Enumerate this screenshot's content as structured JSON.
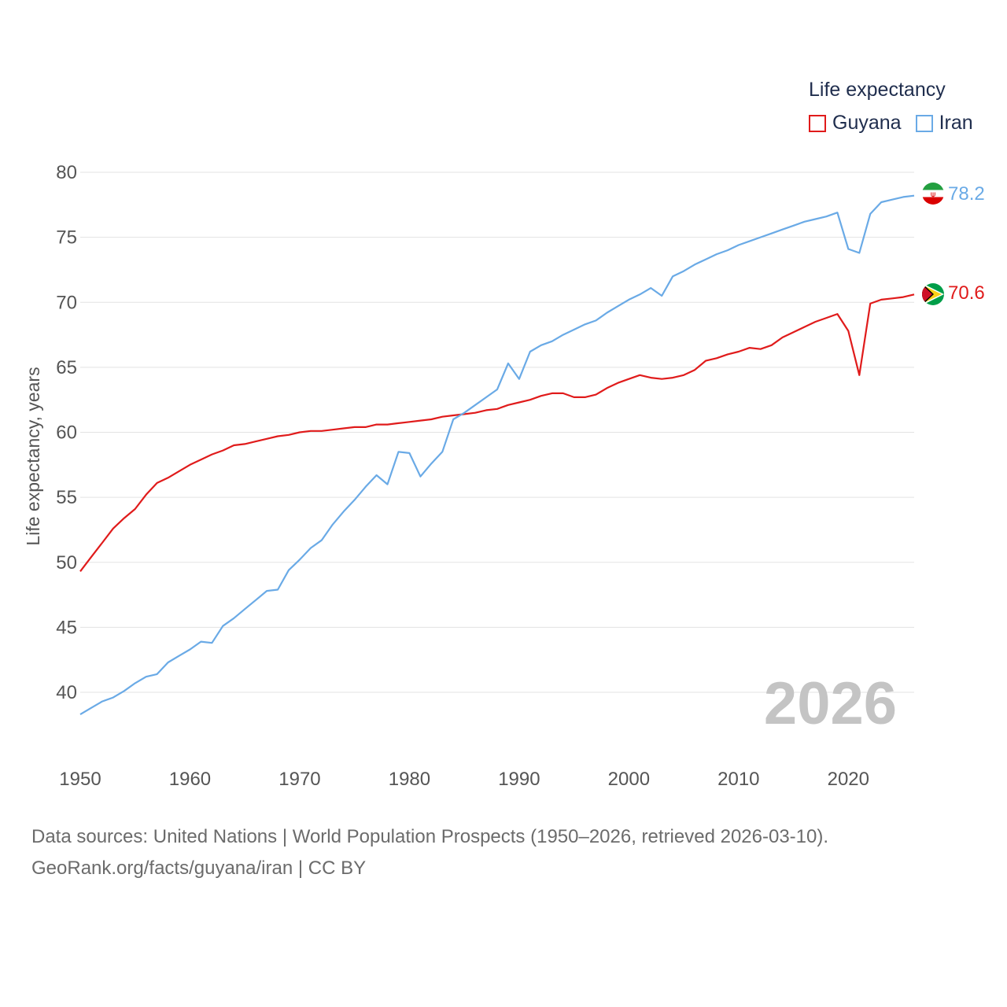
{
  "legend": {
    "title": "Life expectancy",
    "items": [
      {
        "name": "Guyana",
        "color": "#e01b1b"
      },
      {
        "name": "Iran",
        "color": "#6aaae6"
      }
    ]
  },
  "source": {
    "line1": "Data sources: United Nations | World Population Prospects (1950–2026, retrieved 2026-03-10).",
    "line2": "GeoRank.org/facts/guyana/iran | CC BY"
  },
  "chart_data": {
    "type": "line",
    "title": "Life expectancy",
    "xlabel": "",
    "ylabel": "Life expectancy, years",
    "xlim": [
      1950,
      2026
    ],
    "ylim": [
      37,
      81
    ],
    "x_ticks": [
      1950,
      1960,
      1970,
      1980,
      1990,
      2000,
      2010,
      2020
    ],
    "y_ticks": [
      40,
      45,
      50,
      55,
      60,
      65,
      70,
      75,
      80
    ],
    "grid": true,
    "year_label": "2026",
    "x": [
      1950,
      1951,
      1952,
      1953,
      1954,
      1955,
      1956,
      1957,
      1958,
      1959,
      1960,
      1961,
      1962,
      1963,
      1964,
      1965,
      1966,
      1967,
      1968,
      1969,
      1970,
      1971,
      1972,
      1973,
      1974,
      1975,
      1976,
      1977,
      1978,
      1979,
      1980,
      1981,
      1982,
      1983,
      1984,
      1985,
      1986,
      1987,
      1988,
      1989,
      1990,
      1991,
      1992,
      1993,
      1994,
      1995,
      1996,
      1997,
      1998,
      1999,
      2000,
      2001,
      2002,
      2003,
      2004,
      2005,
      2006,
      2007,
      2008,
      2009,
      2010,
      2011,
      2012,
      2013,
      2014,
      2015,
      2016,
      2017,
      2018,
      2019,
      2020,
      2021,
      2022,
      2023,
      2024,
      2025,
      2026
    ],
    "series": [
      {
        "name": "Guyana",
        "color": "#e01b1b",
        "end_label": "70.6",
        "values": [
          49.3,
          50.4,
          51.5,
          52.6,
          53.4,
          54.1,
          55.2,
          56.1,
          56.5,
          57.0,
          57.5,
          57.9,
          58.3,
          58.6,
          59.0,
          59.1,
          59.3,
          59.5,
          59.7,
          59.8,
          60.0,
          60.1,
          60.1,
          60.2,
          60.3,
          60.4,
          60.4,
          60.6,
          60.6,
          60.7,
          60.8,
          60.9,
          61.0,
          61.2,
          61.3,
          61.4,
          61.5,
          61.7,
          61.8,
          62.1,
          62.3,
          62.5,
          62.8,
          63.0,
          63.0,
          62.7,
          62.7,
          62.9,
          63.4,
          63.8,
          64.1,
          64.4,
          64.2,
          64.1,
          64.2,
          64.4,
          64.8,
          65.5,
          65.7,
          66.0,
          66.2,
          66.5,
          66.4,
          66.7,
          67.3,
          67.7,
          68.1,
          68.5,
          68.8,
          69.1,
          67.8,
          64.4,
          69.9,
          70.2,
          70.3,
          70.4,
          70.6
        ]
      },
      {
        "name": "Iran",
        "color": "#6aaae6",
        "end_label": "78.2",
        "values": [
          38.3,
          38.8,
          39.3,
          39.6,
          40.1,
          40.7,
          41.2,
          41.4,
          42.3,
          42.8,
          43.3,
          43.9,
          43.8,
          45.1,
          45.7,
          46.4,
          47.1,
          47.8,
          47.9,
          49.4,
          50.2,
          51.1,
          51.7,
          52.9,
          53.9,
          54.8,
          55.8,
          56.7,
          56.0,
          58.5,
          58.4,
          56.6,
          57.6,
          58.5,
          61.0,
          61.5,
          62.1,
          62.7,
          63.3,
          65.3,
          64.1,
          66.2,
          66.7,
          67.0,
          67.5,
          67.9,
          68.3,
          68.6,
          69.2,
          69.7,
          70.2,
          70.6,
          71.1,
          70.5,
          72.0,
          72.4,
          72.9,
          73.3,
          73.7,
          74.0,
          74.4,
          74.7,
          75.0,
          75.3,
          75.6,
          75.9,
          76.2,
          76.4,
          76.6,
          76.9,
          74.1,
          73.8,
          76.8,
          77.7,
          77.9,
          78.1,
          78.2
        ]
      }
    ]
  }
}
